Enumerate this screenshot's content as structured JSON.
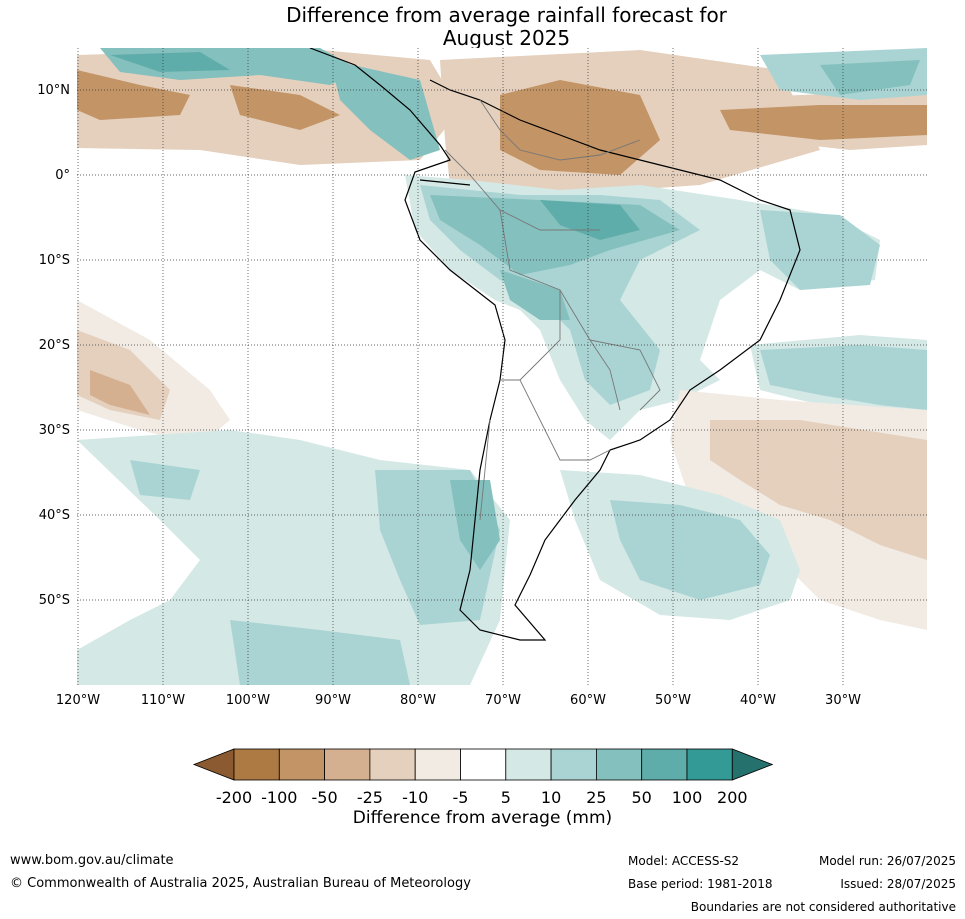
{
  "title": {
    "line1": "Difference from average rainfall forecast for",
    "line2": "August 2025"
  },
  "map": {
    "region": "South America",
    "lat_labels": [
      "10°N",
      "0°",
      "10°S",
      "20°S",
      "30°S",
      "40°S",
      "50°S"
    ],
    "lon_labels": [
      "120°W",
      "110°W",
      "100°W",
      "90°W",
      "80°W",
      "70°W",
      "60°W",
      "50°W",
      "40°W",
      "30°W"
    ],
    "gridlines": true
  },
  "legend": {
    "title": "Difference from average (mm)",
    "ticks": [
      "-200",
      "-100",
      "-50",
      "-25",
      "-10",
      "-5",
      "5",
      "10",
      "25",
      "50",
      "100",
      "200"
    ],
    "colors": [
      "#8c5a30",
      "#ad7a43",
      "#c29466",
      "#d4b090",
      "#e4d0bd",
      "#f1ebe4",
      "#ffffff",
      "#d4e8e6",
      "#aad4d3",
      "#84c0be",
      "#5eadaa",
      "#349a96",
      "#25716e"
    ],
    "extend": "both"
  },
  "footer": {
    "website": "www.bom.gov.au/climate",
    "copyright": "© Commonwealth of Australia 2025, Australian Bureau of Meteorology",
    "model": "Model: ACCESS-S2",
    "base_period": "Base period: 1981-2018",
    "model_run": "Model run: 26/07/2025",
    "issued": "Issued: 28/07/2025",
    "disclaimer": "Boundaries are not considered authoritative"
  }
}
